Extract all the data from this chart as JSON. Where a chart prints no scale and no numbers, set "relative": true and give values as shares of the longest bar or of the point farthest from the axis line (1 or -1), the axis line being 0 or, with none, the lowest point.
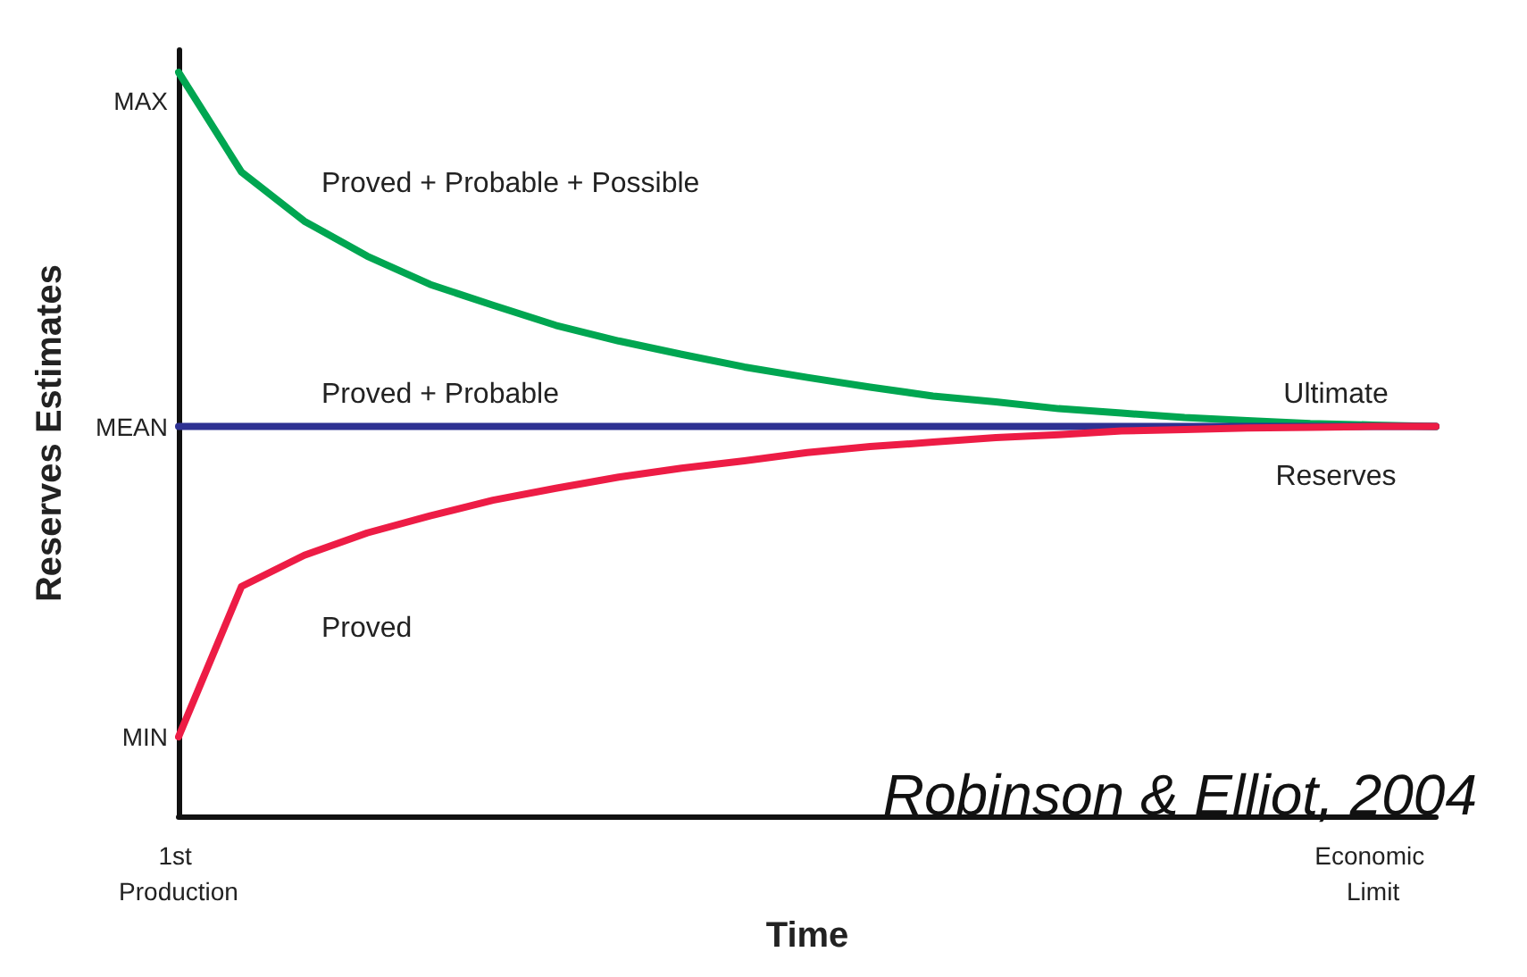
{
  "chart_data": {
    "type": "line",
    "xlabel": "Time",
    "ylabel": "Reserves Estimates",
    "relative": true,
    "categories": [
      "1st Production",
      null,
      null,
      null,
      null,
      null,
      null,
      null,
      null,
      null,
      null,
      null,
      null,
      null,
      null,
      null,
      null,
      null,
      null,
      "Economic Limit",
      null
    ],
    "series": [
      {
        "name": "Proved + Probable + Possible",
        "color": "#00a651",
        "values": [
          1,
          0.866,
          0.8,
          0.753,
          0.715,
          0.687,
          0.66,
          0.639,
          0.621,
          0.604,
          0.59,
          0.577,
          0.565,
          0.557,
          0.548,
          0.542,
          0.536,
          0.532,
          0.528,
          0.526,
          0.524
        ]
      },
      {
        "name": "Proved + Probable",
        "color": "#2e3192",
        "values": [
          0.524,
          0.524,
          0.524,
          0.524,
          0.524,
          0.524,
          0.524,
          0.524,
          0.524,
          0.524,
          0.524,
          0.524,
          0.524,
          0.524,
          0.524,
          0.524,
          0.524,
          0.524,
          0.524,
          0.524,
          0.524
        ]
      },
      {
        "name": "Proved",
        "color": "#ed1c45",
        "values": [
          0.107,
          0.309,
          0.351,
          0.381,
          0.404,
          0.425,
          0.441,
          0.456,
          0.468,
          0.478,
          0.489,
          0.497,
          0.503,
          0.509,
          0.513,
          0.518,
          0.52,
          0.522,
          0.523,
          0.524,
          0.524
        ]
      }
    ],
    "annotations": [
      "MAX",
      "MEAN",
      "MIN",
      "Ultimate",
      "Reserves",
      "Robinson & Elliot, 2004"
    ],
    "grid": false,
    "legend": false,
    "marker": "none",
    "line_style": "solid"
  }
}
